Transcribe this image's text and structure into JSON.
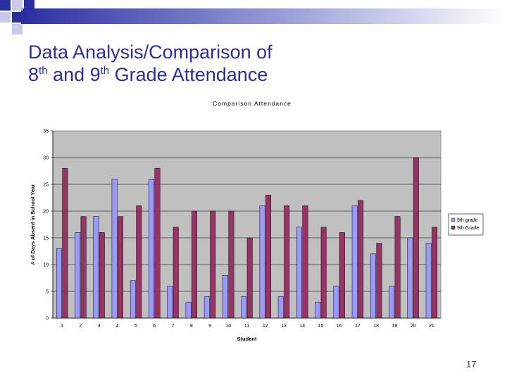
{
  "slide": {
    "title_part1": "Data Analysis/Comparison of",
    "title_8": "8",
    "title_sup1": "th",
    "title_and": " and 9",
    "title_sup2": "th",
    "title_rest": " Grade Attendance",
    "page_number": "17"
  },
  "colors": {
    "accent_blue": "#2a2ea0",
    "plot_background": "#c0c0c0",
    "series_8th": "#9999ff",
    "series_9th": "#993366"
  },
  "chart_data": {
    "type": "bar",
    "title": "Comparison Attendance",
    "xlabel": "Student",
    "ylabel": "# of Days Absent in School Year",
    "ylim": [
      0,
      35
    ],
    "yticks": [
      0,
      5,
      10,
      15,
      20,
      25,
      30,
      35
    ],
    "grid": true,
    "legend_position": "right",
    "categories": [
      "1",
      "2",
      "3",
      "4",
      "5",
      "6",
      "7",
      "8",
      "9",
      "10",
      "11",
      "12",
      "13",
      "14",
      "15",
      "16",
      "17",
      "18",
      "19",
      "20",
      "21"
    ],
    "series": [
      {
        "name": "8th grade",
        "color": "#9999ff",
        "values": [
          13,
          16,
          19,
          26,
          7,
          26,
          6,
          3,
          4,
          8,
          4,
          21,
          4,
          17,
          3,
          6,
          21,
          12,
          6,
          15,
          14
        ]
      },
      {
        "name": "9th Grade",
        "color": "#993366",
        "values": [
          28,
          19,
          16,
          19,
          21,
          28,
          17,
          20,
          20,
          20,
          15,
          23,
          21,
          21,
          17,
          16,
          22,
          14,
          19,
          30,
          17
        ]
      }
    ]
  }
}
